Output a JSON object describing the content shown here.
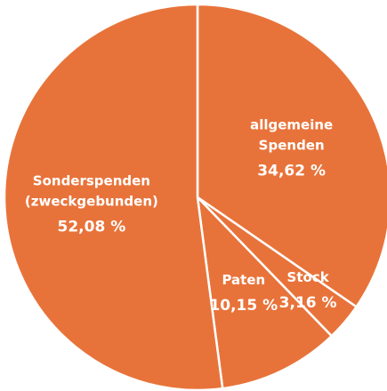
{
  "chart_data": {
    "type": "pie",
    "categories": [
      "allgemeine Spenden",
      "Stock",
      "Paten",
      "Sonderspenden (zweckgebunden)"
    ],
    "values": [
      34.62,
      3.16,
      10.15,
      52.08
    ],
    "value_labels": [
      "34,62 %",
      "3,16 %",
      "10,15 %",
      "52,08 %"
    ],
    "color": "#e8733a"
  }
}
